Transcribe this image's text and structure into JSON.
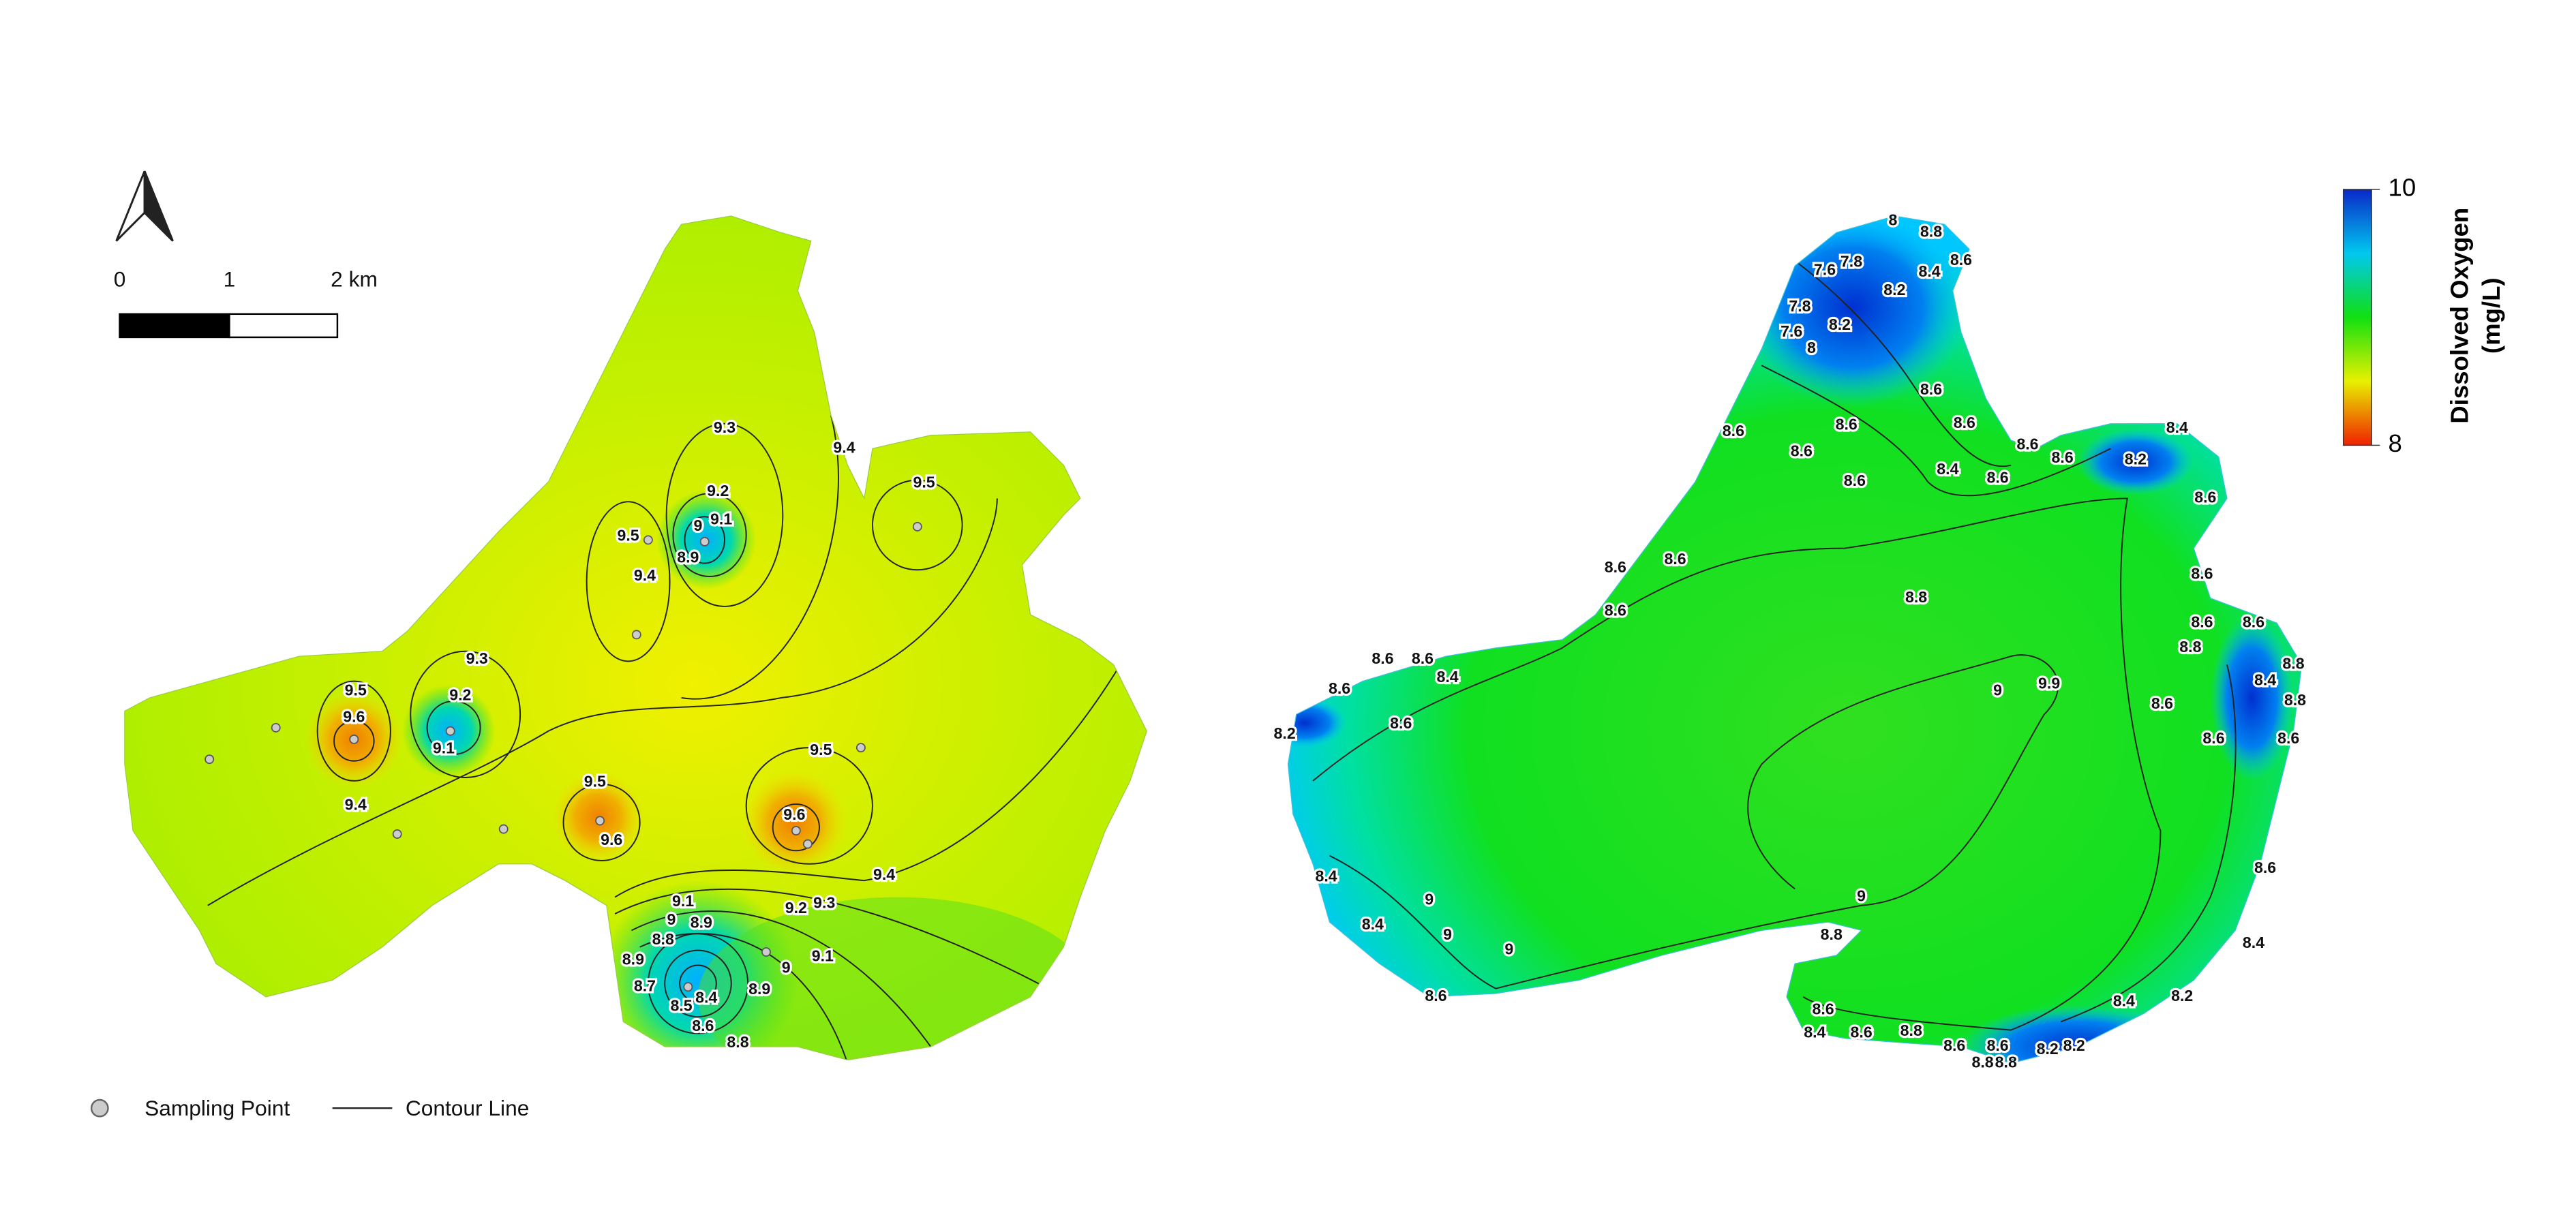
{
  "scale_bar": {
    "labels": [
      "0",
      "1",
      "2 km"
    ]
  },
  "legend": {
    "sampling_point": "Sampling Point",
    "contour_line": "Contour Line"
  },
  "colorbar": {
    "title_line1": "Dissolved Oxygen",
    "title_line2": "(mg/L)",
    "lim": [
      8,
      10
    ],
    "ticks": [
      8,
      10
    ]
  },
  "left_map": {
    "contour_labels": [
      "9.3",
      "9.4",
      "9.5",
      "9.2",
      "9.5",
      "9",
      "9.1",
      "8.9",
      "9.4",
      "9.3",
      "9.5",
      "9.2",
      "9.6",
      "9.1",
      "9.4",
      "9.5",
      "9.5",
      "9.6",
      "9.6",
      "9.4",
      "9.2",
      "9.3",
      "9.1",
      "9",
      "8.9",
      "8.8",
      "8.9",
      "9",
      "9.1",
      "8.7",
      "8.9",
      "8.5",
      "8.4",
      "8.6",
      "8.8"
    ]
  },
  "right_map": {
    "contour_labels": [
      "8",
      "8.8",
      "8.6",
      "8.4",
      "7.8",
      "7.6",
      "7.8",
      "7.6",
      "8",
      "8.2",
      "8.2",
      "8.6",
      "8.6",
      "8.6",
      "8.4",
      "8.6",
      "8.6",
      "8.6",
      "8.6",
      "8.6",
      "8.2",
      "8.4",
      "8.6",
      "8.6",
      "8.6",
      "8.6",
      "8.6",
      "8.6",
      "8.8",
      "8.6",
      "8.6",
      "8.8",
      "8.8",
      "8.4",
      "8.8",
      "8.6",
      "8.6",
      "8.6",
      "9",
      "9.9",
      "8.6",
      "8.6",
      "8.6",
      "8.4",
      "8.6",
      "8.2",
      "8.6",
      "8.4",
      "8.4",
      "8.2",
      "8.4",
      "8.4",
      "9",
      "9",
      "9",
      "8.6",
      "9",
      "8.8",
      "8.6",
      "8.4",
      "8.6",
      "8.8",
      "8.6",
      "8.6",
      "8.8",
      "8.8",
      "8.2",
      "8.2"
    ]
  }
}
